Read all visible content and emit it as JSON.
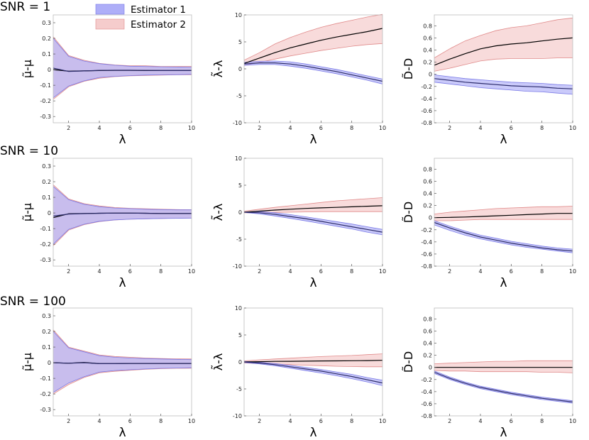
{
  "legend": {
    "items": [
      {
        "label": "Estimator 1",
        "fill": "#aeaef8",
        "edge": "#7a7ae6"
      },
      {
        "label": "Estimator 2",
        "fill": "#f5cccc",
        "edge": "#e08a8a"
      }
    ]
  },
  "row_labels": [
    "SNR = 1",
    "SNR = 10",
    "SNR = 100"
  ],
  "colors": {
    "mean_line": "#000000",
    "est1_line": "#2a2a6a",
    "est1_fill": "#aeaef8",
    "est1_edge": "#7a7ae6",
    "est2_fill": "#f5cccc",
    "est2_edge": "#e08a8a"
  },
  "chart_data": [
    {
      "type": "area",
      "row": "SNR = 1",
      "xlabel": "λ",
      "ylabel": "μ̃-μ",
      "x": [
        1,
        2,
        3,
        4,
        5,
        6,
        7,
        8,
        9,
        10
      ],
      "xticks": [
        2,
        4,
        6,
        8,
        10
      ],
      "yticks": [
        -0.3,
        -0.2,
        -0.1,
        0,
        0.1,
        0.2,
        0.3
      ],
      "ylim": [
        -0.34,
        0.35
      ],
      "series": [
        {
          "name": "Estimator 2",
          "mean": [
            0.0,
            -0.01,
            -0.008,
            -0.006,
            -0.005,
            -0.005,
            -0.006,
            -0.006,
            -0.006,
            -0.006
          ],
          "upper": [
            0.21,
            0.09,
            0.06,
            0.04,
            0.03,
            0.025,
            0.025,
            0.02,
            0.02,
            0.02
          ],
          "lower": [
            -0.19,
            -0.11,
            -0.075,
            -0.055,
            -0.045,
            -0.04,
            -0.037,
            -0.035,
            -0.033,
            -0.032
          ]
        },
        {
          "name": "Estimator 1",
          "mean": [
            0.01,
            -0.012,
            -0.008,
            -0.005,
            -0.004,
            -0.004,
            -0.005,
            -0.006,
            -0.006,
            -0.006
          ],
          "upper": [
            0.2,
            0.085,
            0.055,
            0.038,
            0.028,
            0.022,
            0.02,
            0.018,
            0.017,
            0.016
          ],
          "lower": [
            -0.18,
            -0.105,
            -0.072,
            -0.05,
            -0.043,
            -0.038,
            -0.035,
            -0.033,
            -0.032,
            -0.03
          ]
        }
      ]
    },
    {
      "type": "area",
      "row": "SNR = 1",
      "xlabel": "λ",
      "ylabel": "λ̃-λ",
      "x": [
        1,
        2,
        3,
        4,
        5,
        6,
        7,
        8,
        9,
        10
      ],
      "xticks": [
        2,
        4,
        6,
        8,
        10
      ],
      "yticks": [
        -10,
        -5,
        0,
        5,
        10
      ],
      "ylim": [
        -10,
        10
      ],
      "series": [
        {
          "name": "Estimator 2",
          "mean": [
            1.0,
            2.0,
            3.0,
            3.9,
            4.6,
            5.3,
            5.9,
            6.4,
            6.9,
            7.5
          ],
          "upper": [
            1.6,
            3.0,
            4.6,
            5.8,
            6.8,
            7.7,
            8.4,
            9.0,
            9.6,
            10.1
          ],
          "lower": [
            0.6,
            1.2,
            1.8,
            2.4,
            2.9,
            3.4,
            3.8,
            4.2,
            4.5,
            4.7
          ]
        },
        {
          "name": "Estimator 1",
          "mean": [
            0.9,
            1.1,
            1.1,
            0.9,
            0.5,
            0.0,
            -0.5,
            -1.1,
            -1.7,
            -2.3
          ],
          "upper": [
            1.2,
            1.4,
            1.45,
            1.3,
            0.9,
            0.4,
            -0.1,
            -0.7,
            -1.3,
            -1.9
          ],
          "lower": [
            0.65,
            0.8,
            0.8,
            0.5,
            0.1,
            -0.4,
            -0.9,
            -1.5,
            -2.1,
            -2.8
          ]
        }
      ]
    },
    {
      "type": "area",
      "row": "SNR = 1",
      "xlabel": "λ",
      "ylabel": "D̃-D",
      "x": [
        1,
        2,
        3,
        4,
        5,
        6,
        7,
        8,
        9,
        10
      ],
      "xticks": [
        2,
        4,
        6,
        8,
        10
      ],
      "yticks": [
        -0.8,
        -0.6,
        -0.4,
        -0.2,
        0,
        0.2,
        0.4,
        0.6,
        0.8
      ],
      "ylim": [
        -0.8,
        0.98
      ],
      "series": [
        {
          "name": "Estimator 2",
          "mean": [
            0.15,
            0.25,
            0.34,
            0.42,
            0.47,
            0.5,
            0.52,
            0.55,
            0.58,
            0.6
          ],
          "upper": [
            0.27,
            0.42,
            0.55,
            0.64,
            0.72,
            0.77,
            0.8,
            0.85,
            0.9,
            0.93
          ],
          "lower": [
            0.05,
            0.1,
            0.16,
            0.22,
            0.25,
            0.26,
            0.26,
            0.26,
            0.27,
            0.27
          ]
        },
        {
          "name": "Estimator 1",
          "mean": [
            -0.07,
            -0.1,
            -0.13,
            -0.15,
            -0.17,
            -0.19,
            -0.2,
            -0.21,
            -0.23,
            -0.24
          ],
          "upper": [
            -0.01,
            -0.04,
            -0.07,
            -0.09,
            -0.11,
            -0.13,
            -0.14,
            -0.15,
            -0.17,
            -0.18
          ],
          "lower": [
            -0.13,
            -0.16,
            -0.19,
            -0.22,
            -0.24,
            -0.26,
            -0.28,
            -0.29,
            -0.31,
            -0.33
          ]
        }
      ]
    },
    {
      "type": "area",
      "row": "SNR = 10",
      "xlabel": "λ",
      "ylabel": "μ̃-μ",
      "x": [
        1,
        2,
        3,
        4,
        5,
        6,
        7,
        8,
        9,
        10
      ],
      "xticks": [
        2,
        4,
        6,
        8,
        10
      ],
      "yticks": [
        -0.3,
        -0.2,
        -0.1,
        0,
        0.1,
        0.2,
        0.3
      ],
      "ylim": [
        -0.34,
        0.35
      ],
      "series": [
        {
          "name": "Estimator 2",
          "mean": [
            -0.03,
            -0.005,
            -0.003,
            -0.002,
            -0.001,
            -0.001,
            -0.002,
            -0.003,
            -0.003,
            -0.003
          ],
          "upper": [
            0.18,
            0.09,
            0.06,
            0.045,
            0.035,
            0.03,
            0.027,
            0.024,
            0.022,
            0.021
          ],
          "lower": [
            -0.21,
            -0.11,
            -0.075,
            -0.055,
            -0.045,
            -0.04,
            -0.037,
            -0.035,
            -0.033,
            -0.032
          ]
        },
        {
          "name": "Estimator 1",
          "mean": [
            -0.02,
            -0.007,
            -0.004,
            -0.002,
            -0.001,
            -0.001,
            -0.002,
            -0.003,
            -0.003,
            -0.003
          ],
          "upper": [
            0.17,
            0.085,
            0.056,
            0.04,
            0.032,
            0.028,
            0.024,
            0.022,
            0.02,
            0.02
          ],
          "lower": [
            -0.2,
            -0.105,
            -0.072,
            -0.053,
            -0.044,
            -0.04,
            -0.037,
            -0.035,
            -0.034,
            -0.033
          ]
        }
      ]
    },
    {
      "type": "area",
      "row": "SNR = 10",
      "xlabel": "λ",
      "ylabel": "λ̃-λ",
      "x": [
        1,
        2,
        3,
        4,
        5,
        6,
        7,
        8,
        9,
        10
      ],
      "xticks": [
        2,
        4,
        6,
        8,
        10
      ],
      "yticks": [
        -10,
        -5,
        0,
        5,
        10
      ],
      "ylim": [
        -10,
        10
      ],
      "series": [
        {
          "name": "Estimator 2",
          "mean": [
            0.0,
            0.2,
            0.4,
            0.55,
            0.7,
            0.8,
            0.9,
            1.0,
            1.1,
            1.2
          ],
          "upper": [
            0.2,
            0.55,
            0.9,
            1.2,
            1.5,
            1.8,
            2.1,
            2.3,
            2.5,
            2.7
          ],
          "lower": [
            -0.1,
            -0.1,
            -0.05,
            0.0,
            0.05,
            0.1,
            0.1,
            0.1,
            0.1,
            0.1
          ]
        },
        {
          "name": "Estimator 1",
          "mean": [
            0.0,
            -0.1,
            -0.4,
            -0.8,
            -1.2,
            -1.7,
            -2.2,
            -2.7,
            -3.2,
            -3.7
          ],
          "upper": [
            0.05,
            0.1,
            -0.1,
            -0.45,
            -0.85,
            -1.3,
            -1.75,
            -2.2,
            -2.7,
            -3.2
          ],
          "lower": [
            -0.05,
            -0.3,
            -0.7,
            -1.15,
            -1.6,
            -2.1,
            -2.6,
            -3.1,
            -3.7,
            -4.2
          ]
        }
      ]
    },
    {
      "type": "area",
      "row": "SNR = 10",
      "xlabel": "λ",
      "ylabel": "D̃-D",
      "x": [
        1,
        2,
        3,
        4,
        5,
        6,
        7,
        8,
        9,
        10
      ],
      "xticks": [
        2,
        4,
        6,
        8,
        10
      ],
      "yticks": [
        -0.8,
        -0.6,
        -0.4,
        -0.2,
        0,
        0.2,
        0.4,
        0.6,
        0.8
      ],
      "ylim": [
        -0.8,
        0.98
      ],
      "series": [
        {
          "name": "Estimator 2",
          "mean": [
            0.0,
            0.005,
            0.01,
            0.02,
            0.03,
            0.04,
            0.05,
            0.06,
            0.07,
            0.07
          ],
          "upper": [
            0.06,
            0.09,
            0.11,
            0.13,
            0.15,
            0.16,
            0.17,
            0.18,
            0.18,
            0.19
          ],
          "lower": [
            -0.05,
            -0.05,
            -0.04,
            -0.03,
            -0.03,
            -0.03,
            -0.03,
            -0.03,
            -0.03,
            -0.03
          ]
        },
        {
          "name": "Estimator 1",
          "mean": [
            -0.08,
            -0.17,
            -0.25,
            -0.32,
            -0.37,
            -0.42,
            -0.46,
            -0.5,
            -0.53,
            -0.55
          ],
          "upper": [
            -0.05,
            -0.14,
            -0.22,
            -0.29,
            -0.34,
            -0.39,
            -0.43,
            -0.47,
            -0.5,
            -0.52
          ],
          "lower": [
            -0.12,
            -0.21,
            -0.29,
            -0.35,
            -0.4,
            -0.45,
            -0.49,
            -0.52,
            -0.55,
            -0.58
          ]
        }
      ]
    },
    {
      "type": "area",
      "row": "SNR = 100",
      "xlabel": "λ",
      "ylabel": "μ̃-μ",
      "x": [
        1,
        2,
        3,
        4,
        5,
        6,
        7,
        8,
        9,
        10
      ],
      "xticks": [
        2,
        4,
        6,
        8,
        10
      ],
      "yticks": [
        -0.3,
        -0.2,
        -0.1,
        0,
        0.1,
        0.2,
        0.3
      ],
      "ylim": [
        -0.34,
        0.35
      ],
      "series": [
        {
          "name": "Estimator 2",
          "mean": [
            0.0,
            -0.003,
            0.002,
            -0.006,
            -0.006,
            -0.005,
            -0.005,
            -0.005,
            -0.005,
            -0.005
          ],
          "upper": [
            0.21,
            0.1,
            0.075,
            0.05,
            0.04,
            0.035,
            0.03,
            0.027,
            0.025,
            0.024
          ],
          "lower": [
            -0.2,
            -0.14,
            -0.095,
            -0.065,
            -0.055,
            -0.048,
            -0.042,
            -0.038,
            -0.036,
            -0.035
          ]
        },
        {
          "name": "Estimator 1",
          "mean": [
            0.0,
            -0.003,
            0.0,
            -0.006,
            -0.006,
            -0.005,
            -0.005,
            -0.005,
            -0.005,
            -0.005
          ],
          "upper": [
            0.2,
            0.095,
            0.07,
            0.045,
            0.035,
            0.03,
            0.027,
            0.024,
            0.022,
            0.02
          ],
          "lower": [
            -0.19,
            -0.13,
            -0.09,
            -0.06,
            -0.05,
            -0.045,
            -0.04,
            -0.036,
            -0.034,
            -0.032
          ]
        }
      ]
    },
    {
      "type": "area",
      "row": "SNR = 100",
      "xlabel": "λ",
      "ylabel": "λ̃-λ",
      "x": [
        1,
        2,
        3,
        4,
        5,
        6,
        7,
        8,
        9,
        10
      ],
      "xticks": [
        2,
        4,
        6,
        8,
        10
      ],
      "yticks": [
        -10,
        -5,
        0,
        5,
        10
      ],
      "ylim": [
        -10,
        10
      ],
      "series": [
        {
          "name": "Estimator 2",
          "mean": [
            0.0,
            0.05,
            0.1,
            0.12,
            0.15,
            0.18,
            0.2,
            0.22,
            0.25,
            0.3
          ],
          "upper": [
            0.2,
            0.4,
            0.55,
            0.7,
            0.85,
            1.0,
            1.1,
            1.2,
            1.35,
            1.5
          ],
          "lower": [
            -0.2,
            -0.3,
            -0.4,
            -0.5,
            -0.6,
            -0.7,
            -0.8,
            -0.85,
            -0.9,
            -0.9
          ]
        },
        {
          "name": "Estimator 1",
          "mean": [
            0.0,
            -0.2,
            -0.5,
            -0.9,
            -1.3,
            -1.7,
            -2.2,
            -2.7,
            -3.3,
            -3.9
          ],
          "upper": [
            0.1,
            -0.05,
            -0.3,
            -0.65,
            -1.0,
            -1.4,
            -1.85,
            -2.3,
            -2.9,
            -3.4
          ],
          "lower": [
            -0.1,
            -0.35,
            -0.7,
            -1.15,
            -1.6,
            -2.05,
            -2.55,
            -3.1,
            -3.7,
            -4.4
          ]
        }
      ]
    },
    {
      "type": "area",
      "row": "SNR = 100",
      "xlabel": "λ",
      "ylabel": "D̃-D",
      "x": [
        1,
        2,
        3,
        4,
        5,
        6,
        7,
        8,
        9,
        10
      ],
      "xticks": [
        2,
        4,
        6,
        8,
        10
      ],
      "yticks": [
        -0.8,
        -0.6,
        -0.4,
        -0.2,
        0,
        0.2,
        0.4,
        0.6,
        0.8
      ],
      "ylim": [
        -0.8,
        0.98
      ],
      "series": [
        {
          "name": "Estimator 2",
          "mean": [
            0.0,
            0.0,
            0.0,
            0.0,
            0.0,
            0.0,
            0.0,
            0.0,
            0.0,
            0.0
          ],
          "upper": [
            0.06,
            0.07,
            0.08,
            0.09,
            0.1,
            0.1,
            0.11,
            0.11,
            0.11,
            0.11
          ],
          "lower": [
            -0.05,
            -0.06,
            -0.06,
            -0.07,
            -0.07,
            -0.07,
            -0.07,
            -0.08,
            -0.08,
            -0.09
          ]
        },
        {
          "name": "Estimator 1",
          "mean": [
            -0.08,
            -0.18,
            -0.26,
            -0.33,
            -0.38,
            -0.43,
            -0.47,
            -0.51,
            -0.54,
            -0.57
          ],
          "upper": [
            -0.06,
            -0.16,
            -0.24,
            -0.31,
            -0.36,
            -0.41,
            -0.45,
            -0.49,
            -0.52,
            -0.55
          ],
          "lower": [
            -0.1,
            -0.2,
            -0.28,
            -0.35,
            -0.4,
            -0.45,
            -0.49,
            -0.53,
            -0.56,
            -0.59
          ]
        }
      ]
    }
  ]
}
